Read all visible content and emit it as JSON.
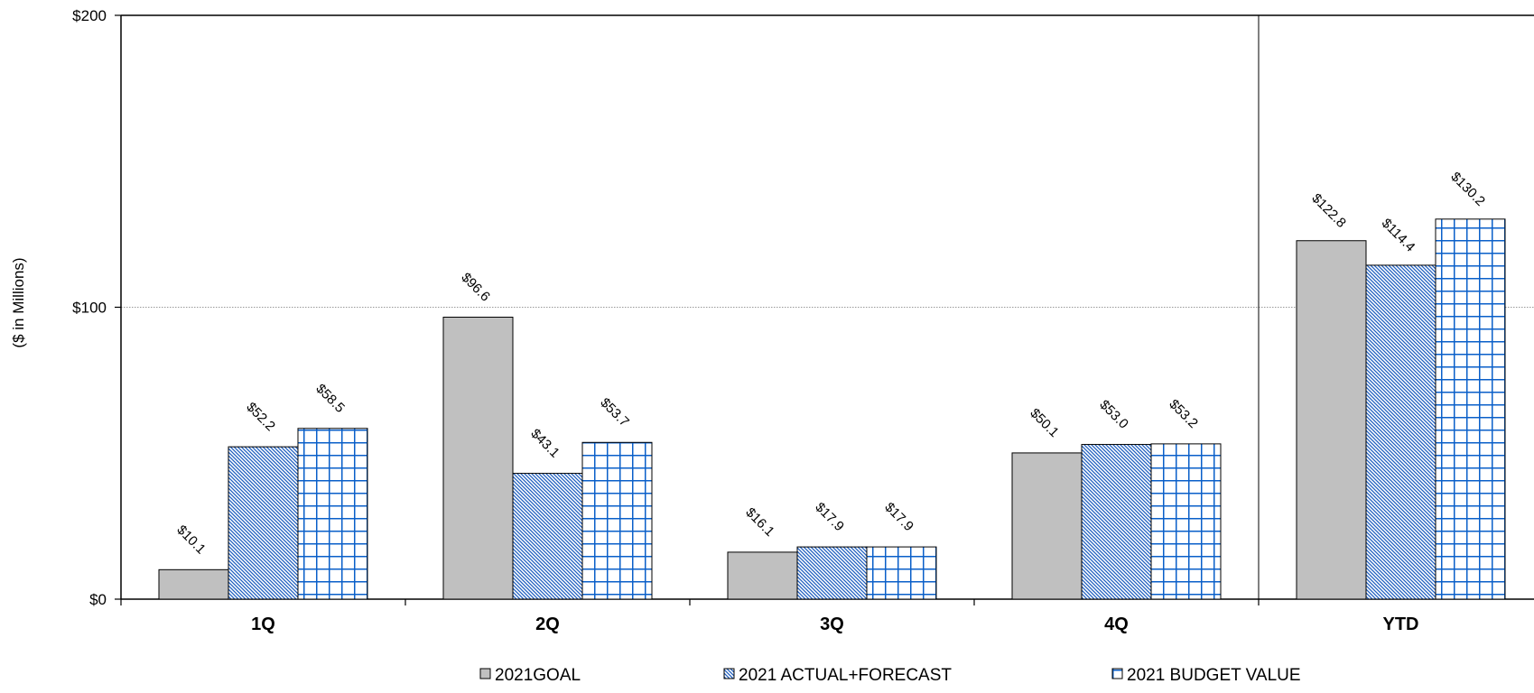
{
  "chart_data": {
    "type": "bar",
    "ylabel": "($ in Millions)",
    "xlabel": "",
    "title": "",
    "ylim": [
      0,
      200
    ],
    "y_ticks": [
      {
        "value": 0,
        "label": "$0"
      },
      {
        "value": 100,
        "label": "$100"
      },
      {
        "value": 200,
        "label": "$200"
      }
    ],
    "categories": [
      "1Q",
      "2Q",
      "3Q",
      "4Q",
      "YTD"
    ],
    "series": [
      {
        "name": "2021GOAL",
        "values": [
          10.1,
          96.6,
          16.1,
          50.1,
          122.8
        ],
        "labels": [
          "$10.1",
          "$96.6",
          "$16.1",
          "$50.1",
          "$122.8"
        ],
        "fill": "solid-gray",
        "color": "#c0c0c0"
      },
      {
        "name": "2021 ACTUAL+FORECAST",
        "values": [
          52.2,
          43.1,
          17.9,
          53.0,
          114.4
        ],
        "labels": [
          "$52.2",
          "$43.1",
          "$17.9",
          "$53.0",
          "$114.4"
        ],
        "fill": "diagonal-hatch",
        "color": "#1f5fbf"
      },
      {
        "name": "2021 BUDGET VALUE",
        "values": [
          58.5,
          53.7,
          17.9,
          53.2,
          130.2
        ],
        "labels": [
          "$58.5",
          "$53.7",
          "$17.9",
          "$53.2",
          "$130.2"
        ],
        "fill": "grid-hatch",
        "color": "#0a5fc9"
      }
    ],
    "gridlines": [
      100
    ],
    "separator_before": "YTD",
    "legend_position": "bottom"
  }
}
